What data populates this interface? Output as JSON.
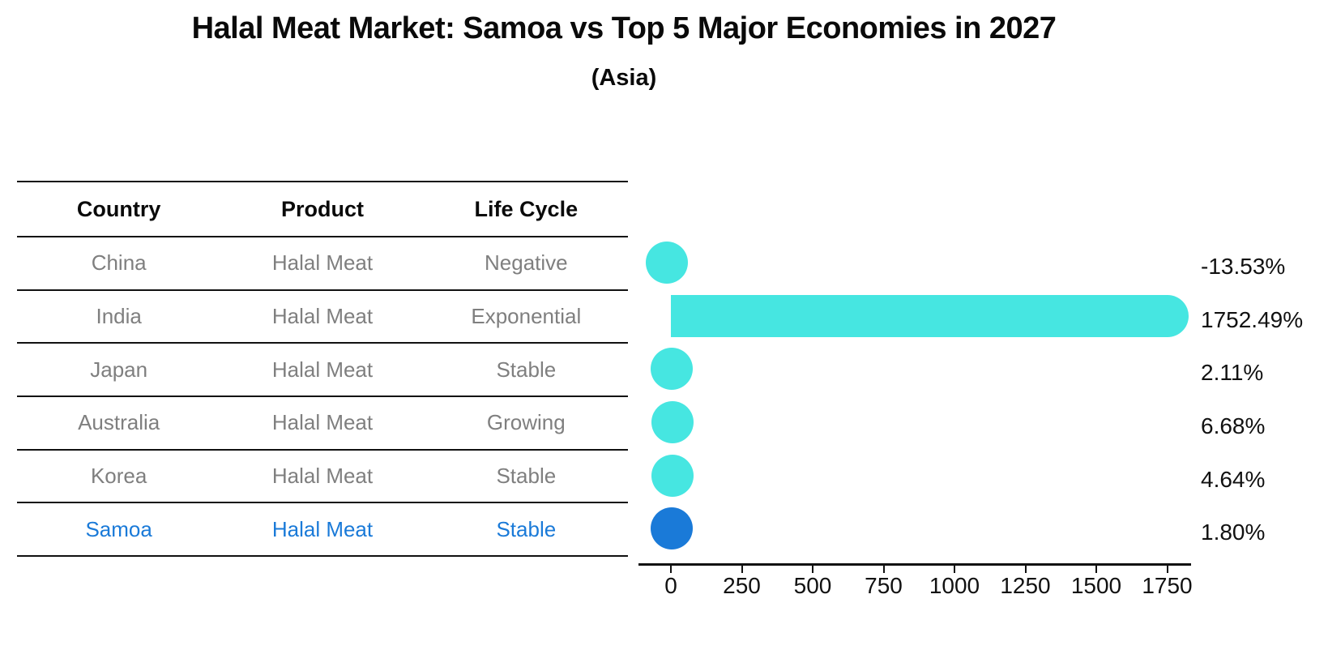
{
  "title": "Halal Meat Market: Samoa vs Top 5 Major Economies in 2027",
  "subtitle": "(Asia)",
  "table": {
    "headers": [
      "Country",
      "Product",
      "Life Cycle"
    ],
    "rows": [
      {
        "country": "China",
        "product": "Halal Meat",
        "life_cycle": "Negative"
      },
      {
        "country": "India",
        "product": "Halal Meat",
        "life_cycle": "Exponential"
      },
      {
        "country": "Japan",
        "product": "Halal Meat",
        "life_cycle": "Stable"
      },
      {
        "country": "Australia",
        "product": "Halal Meat",
        "life_cycle": "Growing"
      },
      {
        "country": "Korea",
        "product": "Halal Meat",
        "life_cycle": "Stable"
      },
      {
        "country": "Samoa",
        "product": "Halal Meat",
        "life_cycle": "Stable"
      }
    ],
    "highlight_row_index": 5
  },
  "chart_data": {
    "type": "bar",
    "orientation": "horizontal",
    "title": "Halal Meat Market: Samoa vs Top 5 Major Economies in 2027",
    "subtitle": "(Asia)",
    "categories": [
      "China",
      "India",
      "Japan",
      "Australia",
      "Korea",
      "Samoa"
    ],
    "values": [
      -13.53,
      1752.49,
      2.11,
      6.68,
      4.64,
      1.8
    ],
    "value_labels": [
      "-13.53%",
      "1752.49%",
      "2.11%",
      "6.68%",
      "4.64%",
      "1.80%"
    ],
    "xlabel": "",
    "ylabel": "",
    "xticks": [
      0,
      250,
      500,
      750,
      1000,
      1250,
      1500,
      1750
    ],
    "xlim": [
      -114,
      1834
    ],
    "grid": false,
    "legend": false,
    "highlight_index": 5,
    "colors": {
      "bar": "#46E6E1",
      "highlight": "#1A7AD8",
      "table_text_gray": "#7f7f7f",
      "highlight_text": "#1A7AD8",
      "axis": "#111111"
    }
  }
}
